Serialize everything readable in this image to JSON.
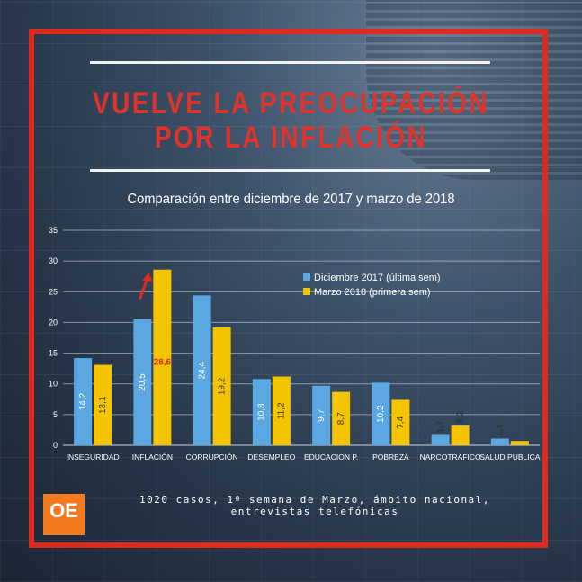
{
  "header": {
    "title_line1": "VUELVE LA PREOCUPACIÓN",
    "title_line2": "POR LA INFLACIÓN",
    "subtitle": "Comparación entre diciembre de 2017 y marzo de 2018"
  },
  "footnote": {
    "line1": "1020 casos, 1ª semana de Marzo, ámbito nacional,",
    "line2": "entrevistas telefónicas"
  },
  "logo": {
    "text": "OE"
  },
  "colors": {
    "frame": "#e02a1e",
    "title": "#e0342a",
    "series_dec": "#5aa7e2",
    "series_mar": "#f5c400",
    "arrow": "#e02a1e",
    "logo": "#f47a1f"
  },
  "chart_data": {
    "type": "bar",
    "categories": [
      "INSEGURIDAD",
      "INFLACIÓN",
      "CORRUPCIÓN",
      "DESEMPLEO",
      "EDUCACION P.",
      "POBREZA",
      "NARCOTRAFICO",
      "SALUD PUBLICA"
    ],
    "series": [
      {
        "name": "Diciembre 2017 (última sem)",
        "values": [
          14.2,
          20.5,
          24.4,
          10.8,
          9.7,
          10.2,
          1.7,
          1.1
        ],
        "labels": [
          "14,2",
          "20,5",
          "24,4",
          "10,8",
          "9,7",
          "10,2",
          "1,7",
          "1,1"
        ]
      },
      {
        "name": "Marzo 2018 (primera sem)",
        "values": [
          13.1,
          28.6,
          19.2,
          11.2,
          8.7,
          7.4,
          3.2,
          0.7
        ],
        "labels": [
          "13,1",
          "28,6",
          "19,2",
          "11,2",
          "8,7",
          "7,4",
          "3,2",
          ""
        ]
      }
    ],
    "ylim": [
      0,
      35
    ],
    "yticks": [
      0,
      5,
      10,
      15,
      20,
      25,
      30,
      35
    ],
    "grid": true,
    "legend": "right",
    "annotation": "arrow pointing up to INFLACIÓN"
  }
}
